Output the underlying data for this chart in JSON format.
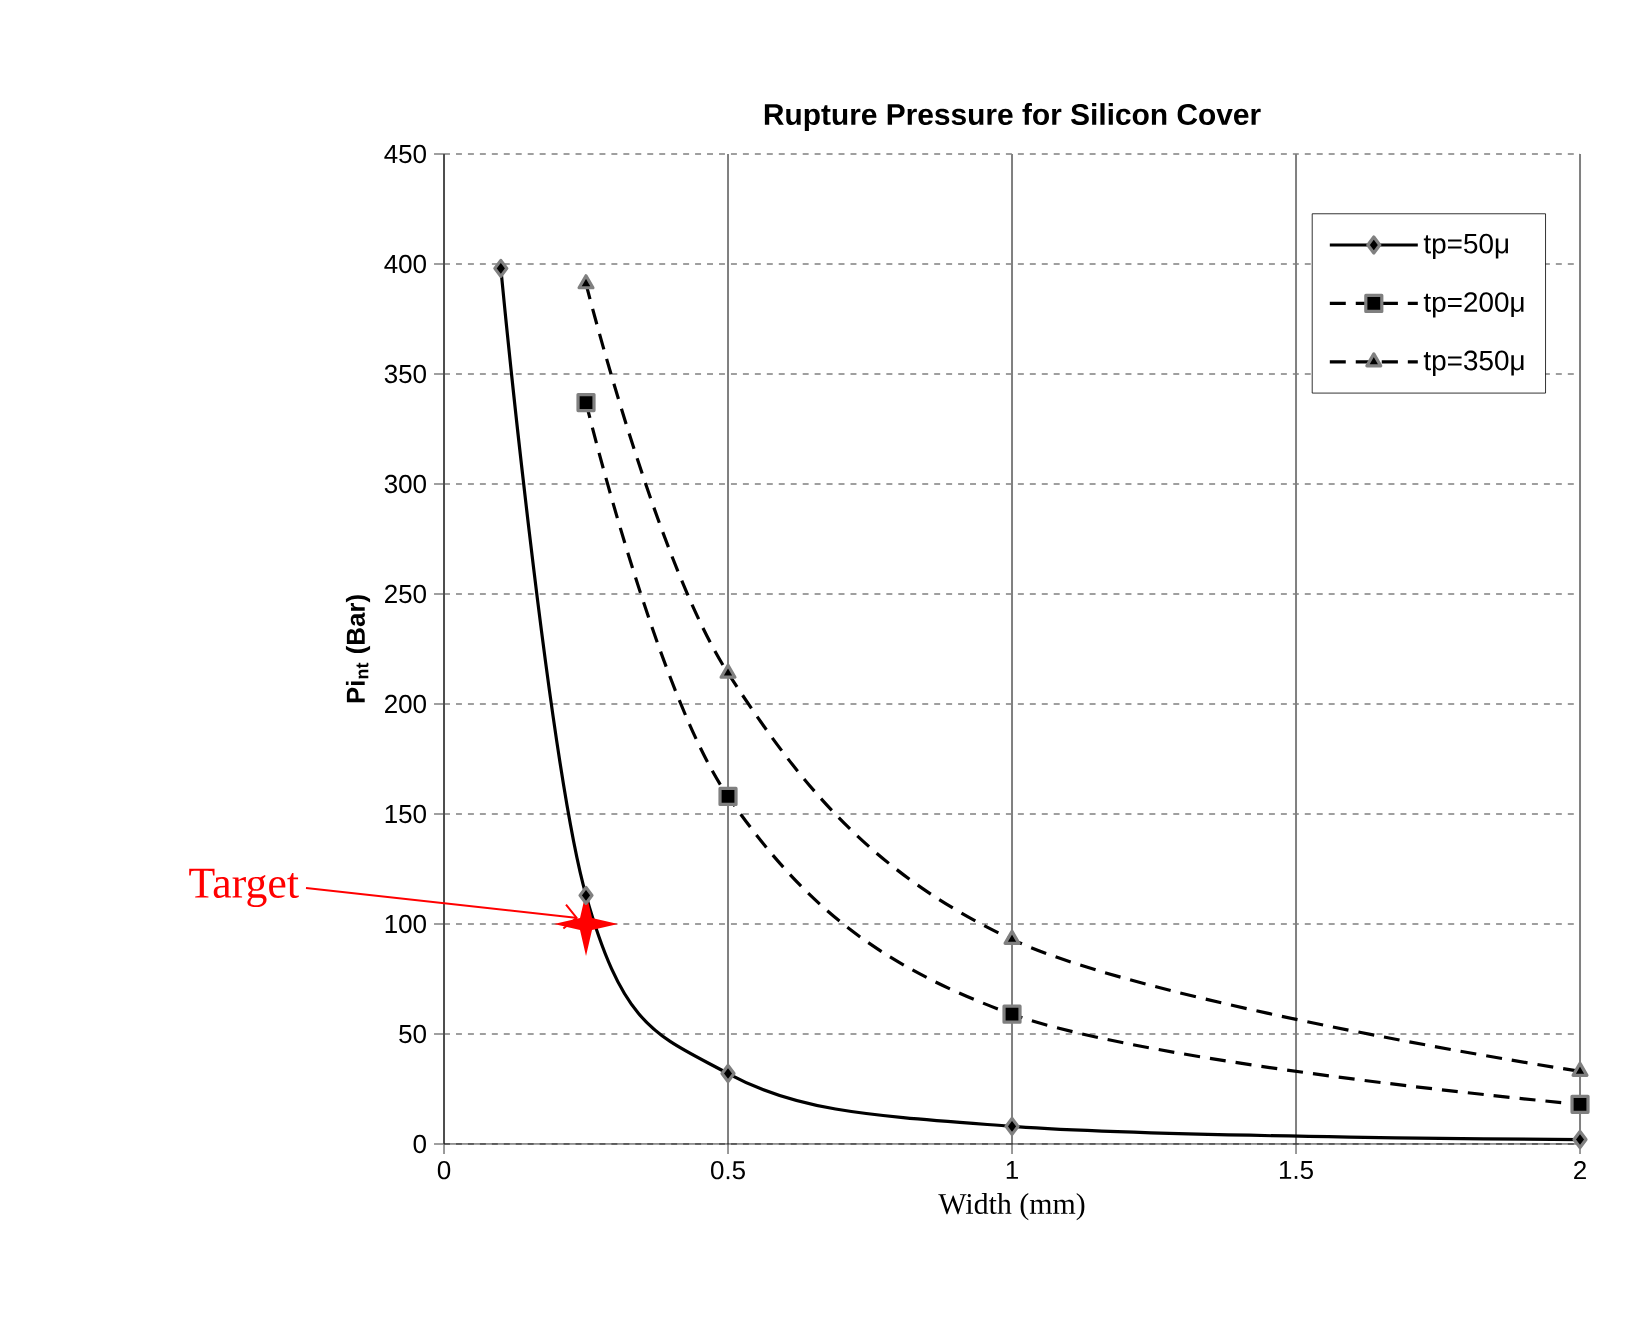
{
  "chart_data": {
    "type": "line",
    "title": "Rupture Pressure for Silicon Cover",
    "xlabel": "Width (mm)",
    "ylabel": "Pi$_{nt}$ (Bar)",
    "series": [
      {
        "name": "tp=50μ",
        "color": "#000000",
        "x": [
          0.1,
          0.25,
          0.5,
          1,
          2
        ],
        "values": [
          398,
          113,
          32,
          8,
          2
        ],
        "marker": "diamond",
        "line_style": "solid"
      },
      {
        "name": "tp=200μ",
        "color": "#000000",
        "x": [
          0.25,
          0.5,
          1,
          2
        ],
        "values": [
          337,
          158,
          59,
          18
        ],
        "marker": "square",
        "line_style": "dashed"
      },
      {
        "name": "tp=350μ",
        "color": "#000000",
        "x": [
          0.25,
          0.5,
          1,
          2
        ],
        "values": [
          391,
          214,
          93,
          33
        ],
        "marker": "triangle",
        "line_style": "dashed"
      }
    ],
    "xlim": [
      0,
      2
    ],
    "xticks": [
      0,
      0.5,
      1,
      1.5,
      2
    ],
    "ylim": [
      0,
      450
    ],
    "yticks": [
      0,
      50,
      100,
      150,
      200,
      250,
      300,
      350,
      400,
      450
    ],
    "grid": true,
    "legend": "top right",
    "annotations": [
      {
        "text": "Target",
        "x": 0.25,
        "y": 100
      }
    ]
  }
}
